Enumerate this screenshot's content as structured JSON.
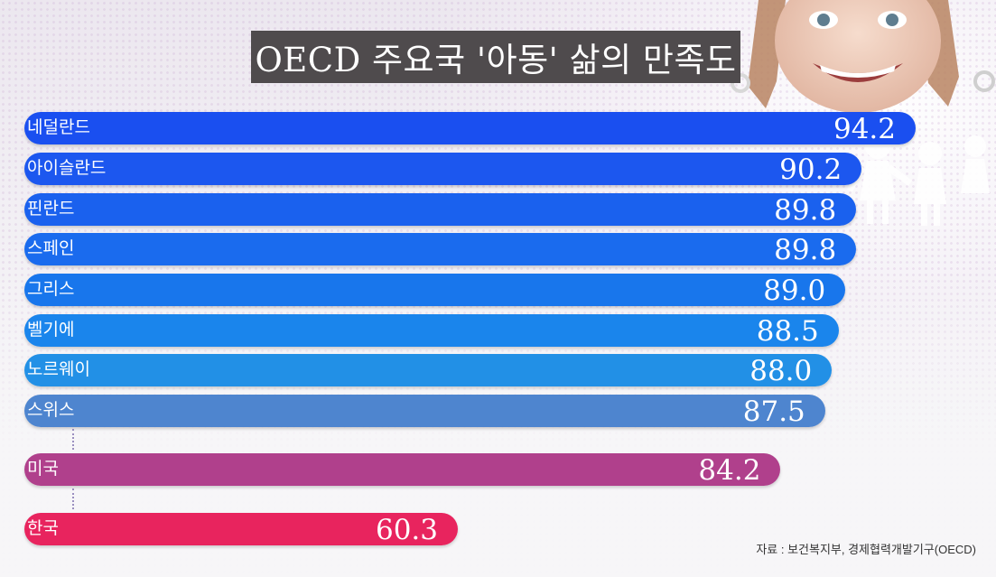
{
  "title": "OECD 주요국 '아동' 삶의 만족도",
  "source": "자료 : 보건복지부, 경제협력개발기구(OECD)",
  "chart_data": {
    "type": "bar",
    "orientation": "horizontal",
    "title": "OECD 주요국 '아동' 삶의 만족도",
    "categories": [
      "네덜란드",
      "아이슬란드",
      "핀란드",
      "스페인",
      "그리스",
      "벨기에",
      "노르웨이",
      "스위스",
      "미국",
      "한국"
    ],
    "values": [
      94.2,
      90.2,
      89.8,
      89.8,
      89.0,
      88.5,
      88.0,
      87.5,
      84.2,
      60.3
    ],
    "value_labels": [
      "94.2",
      "90.2",
      "89.8",
      "89.8",
      "89.0",
      "88.5",
      "88.0",
      "87.5",
      "84.2",
      "60.3"
    ],
    "colors": [
      "#1a4ff0",
      "#1c57ef",
      "#1a61ee",
      "#1a6bee",
      "#1876ec",
      "#1a85ec",
      "#2290e6",
      "#4e85cf",
      "#b0408c",
      "#e8245e"
    ],
    "gap_indicators_after": [
      "스위스",
      "미국"
    ],
    "grid": false,
    "legend": "none"
  }
}
